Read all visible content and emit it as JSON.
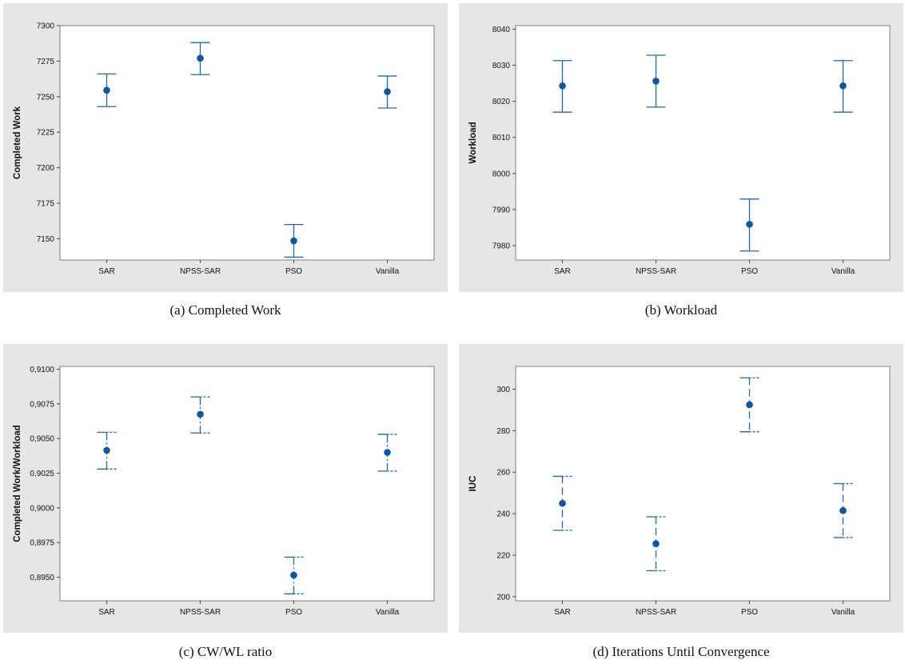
{
  "colors": {
    "background": "#e6e6e6",
    "plot": "#ffffff",
    "marker": "#0d57a0",
    "errorbar": "#1f66ad"
  },
  "chart_data": [
    {
      "type": "interval",
      "caption": "(a) Completed Work",
      "categories": [
        "SAR",
        "NPSS-SAR",
        "PSO",
        "Vanilla"
      ],
      "mean": [
        7254.5,
        7277,
        7148.5,
        7253.5
      ],
      "lower": [
        7243,
        7265.5,
        7137,
        7242
      ],
      "upper": [
        7266,
        7288,
        7160,
        7264.5
      ],
      "xlabel": "",
      "ylabel": "Completed Work",
      "ylim": [
        7135,
        7300
      ],
      "ytick_values": [
        7150,
        7175,
        7200,
        7225,
        7250,
        7275,
        7300
      ],
      "ytick_labels": [
        "7150",
        "7175",
        "7200",
        "7225",
        "7250",
        "7275",
        "7300"
      ],
      "errorbar_style": "solid",
      "grid": false
    },
    {
      "type": "interval",
      "caption": "(b) Workload",
      "categories": [
        "SAR",
        "NPSS-SAR",
        "PSO",
        "Vanilla"
      ],
      "mean": [
        8024.3,
        8025.6,
        7985.9,
        8024.3
      ],
      "lower": [
        8017,
        8018.4,
        7978.5,
        8017
      ],
      "upper": [
        8031.3,
        8032.8,
        7992.9,
        8031.3
      ],
      "xlabel": "",
      "ylabel": "Workload",
      "ylim": [
        7976,
        8041
      ],
      "ytick_values": [
        7980,
        7990,
        8000,
        8010,
        8020,
        8030,
        8040
      ],
      "ytick_labels": [
        "7980",
        "7990",
        "8000",
        "8010",
        "8020",
        "8030",
        "8040"
      ],
      "errorbar_style": "solid",
      "grid": false
    },
    {
      "type": "interval",
      "caption": "(c) CW/WL ratio",
      "categories": [
        "SAR",
        "NPSS-SAR",
        "PSO",
        "Vanilla"
      ],
      "mean": [
        0.90415,
        0.90675,
        0.89515,
        0.904
      ],
      "lower": [
        0.9028,
        0.9054,
        0.8938,
        0.90265
      ],
      "upper": [
        0.90545,
        0.908,
        0.89645,
        0.9053
      ],
      "xlabel": "",
      "ylabel": "Completed Work/Workload",
      "ylim": [
        0.8933,
        0.9102
      ],
      "ytick_values": [
        0.895,
        0.8975,
        0.9,
        0.9025,
        0.905,
        0.9075,
        0.91
      ],
      "ytick_labels": [
        "0,8950",
        "0,8975",
        "0,9000",
        "0,9025",
        "0,9050",
        "0,9075",
        "0,9100"
      ],
      "errorbar_style": "dashdot",
      "grid": false
    },
    {
      "type": "interval",
      "caption": "(d) Iterations Until Convergence",
      "categories": [
        "SAR",
        "NPSS-SAR",
        "PSO",
        "Vanilla"
      ],
      "mean": [
        245,
        225.5,
        292.5,
        241.5
      ],
      "lower": [
        232,
        212.5,
        279.5,
        228.5
      ],
      "upper": [
        258,
        238.5,
        305.5,
        254.5
      ],
      "xlabel": "",
      "ylabel": "IUC",
      "ylim": [
        198,
        311
      ],
      "ytick_values": [
        200,
        220,
        240,
        260,
        280,
        300
      ],
      "ytick_labels": [
        "200",
        "220",
        "240",
        "260",
        "280",
        "300"
      ],
      "errorbar_style": "dashed",
      "grid": false
    }
  ]
}
